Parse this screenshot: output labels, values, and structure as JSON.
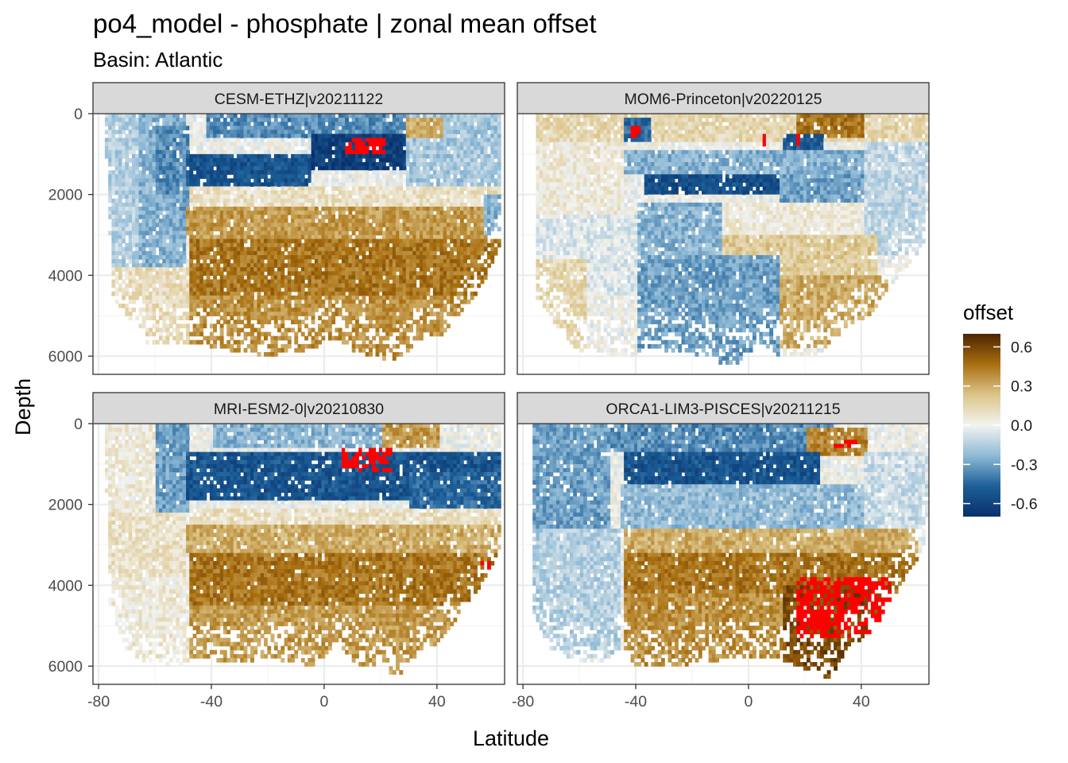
{
  "title": "po4_model - phosphate  | zonal mean offset",
  "subtitle": "Basin: Atlantic",
  "xlabel": "Latitude",
  "ylabel": "Depth",
  "legend": {
    "title": "offset",
    "ticks": [
      "0.6",
      "0.3",
      "0.0",
      "-0.3",
      "-0.6"
    ],
    "tick_values": [
      0.6,
      0.3,
      0.0,
      -0.3,
      -0.6
    ],
    "range": [
      -0.7,
      0.7
    ],
    "colors": [
      "#08306b",
      "#1d5f98",
      "#8fbad6",
      "#f3f3f0",
      "#dcc58a",
      "#a96f10",
      "#4d2400"
    ],
    "out_of_range_color": "#ff0000",
    "position": "right"
  },
  "chart_data": {
    "type": "heatmap",
    "facet_layout": "2x2",
    "xlim": [
      -82,
      64
    ],
    "ylim": [
      6450,
      0
    ],
    "x_ticks": [
      -80,
      -40,
      0,
      40
    ],
    "x_tick_labels": [
      "-80",
      "-40",
      "0",
      "40"
    ],
    "y_ticks": [
      0,
      2000,
      4000,
      6000
    ],
    "y_tick_labels": [
      "0",
      "2000",
      "4000",
      "6000"
    ],
    "grid": true,
    "panels": [
      {
        "strip": "CESM-ETHZ|v20211122",
        "bottom": [
          [
            -78,
            0
          ],
          [
            -75,
            4500
          ],
          [
            -70,
            4900
          ],
          [
            -63,
            5600
          ],
          [
            -55,
            5700
          ],
          [
            -45,
            5600
          ],
          [
            -40,
            5700
          ],
          [
            -35,
            5800
          ],
          [
            -25,
            5900
          ],
          [
            -20,
            6000
          ],
          [
            -10,
            5800
          ],
          [
            -5,
            5900
          ],
          [
            0,
            5600
          ],
          [
            5,
            5500
          ],
          [
            10,
            5800
          ],
          [
            15,
            5900
          ],
          [
            20,
            6000
          ],
          [
            25,
            6050
          ],
          [
            30,
            5800
          ],
          [
            35,
            5500
          ],
          [
            40,
            5500
          ],
          [
            45,
            5200
          ],
          [
            50,
            4800
          ],
          [
            55,
            4300
          ],
          [
            58,
            3900
          ],
          [
            62,
            3300
          ],
          [
            63,
            0
          ]
        ],
        "zones": [
          {
            "x0": -80,
            "x1": -66,
            "d0": 0,
            "d1": 5000,
            "v": -0.15
          },
          {
            "x0": -66,
            "x1": -50,
            "d0": 0,
            "d1": 3800,
            "v": -0.25
          },
          {
            "x0": -60,
            "x1": -48,
            "d0": 300,
            "d1": 2000,
            "v": -0.35
          },
          {
            "x0": -52,
            "x1": -42,
            "d0": 1000,
            "d1": 2800,
            "v": -0.3
          },
          {
            "x0": -50,
            "x1": -5,
            "d0": 1000,
            "d1": 1800,
            "v": -0.52
          },
          {
            "x0": -42,
            "x1": 30,
            "d0": 0,
            "d1": 600,
            "v": -0.35
          },
          {
            "x0": -5,
            "x1": 28,
            "d0": 500,
            "d1": 1400,
            "v": -0.62
          },
          {
            "x0": 28,
            "x1": 63,
            "d0": 0,
            "d1": 2000,
            "v": -0.18
          },
          {
            "x0": 28,
            "x1": 42,
            "d0": 100,
            "d1": 600,
            "v": 0.3
          },
          {
            "x0": -48,
            "x1": 63,
            "d0": 1800,
            "d1": 2300,
            "v": 0.1
          },
          {
            "x0": -50,
            "x1": 63,
            "d0": 2300,
            "d1": 3100,
            "v": 0.35
          },
          {
            "x0": -48,
            "x1": 62,
            "d0": 3100,
            "d1": 4500,
            "v": 0.45
          },
          {
            "x0": -48,
            "x1": 62,
            "d0": 4500,
            "d1": 6100,
            "v": 0.38
          },
          {
            "x0": -78,
            "x1": -48,
            "d0": 3800,
            "d1": 5800,
            "v": 0.12
          },
          {
            "x0": 56,
            "x1": 63,
            "d0": 2000,
            "d1": 3000,
            "v": -0.25
          }
        ],
        "hot": [
          {
            "x0": 7,
            "x1": 21,
            "d0": 550,
            "d1": 950
          }
        ]
      },
      {
        "strip": "MOM6-Princeton|v20220125",
        "bottom": [
          [
            -76,
            0
          ],
          [
            -75,
            4500
          ],
          [
            -70,
            5000
          ],
          [
            -65,
            5500
          ],
          [
            -60,
            5800
          ],
          [
            -50,
            5900
          ],
          [
            -40,
            6000
          ],
          [
            -35,
            5700
          ],
          [
            -30,
            5800
          ],
          [
            -20,
            5900
          ],
          [
            -10,
            6100
          ],
          [
            -5,
            6200
          ],
          [
            0,
            5900
          ],
          [
            5,
            5600
          ],
          [
            10,
            5900
          ],
          [
            20,
            6000
          ],
          [
            25,
            5900
          ],
          [
            30,
            5500
          ],
          [
            35,
            5300
          ],
          [
            40,
            5100
          ],
          [
            45,
            4800
          ],
          [
            50,
            4200
          ],
          [
            55,
            3800
          ],
          [
            60,
            3400
          ],
          [
            63,
            3000
          ],
          [
            64,
            0
          ]
        ],
        "zones": [
          {
            "x0": -80,
            "x1": 64,
            "d0": 0,
            "d1": 650,
            "v": 0.15
          },
          {
            "x0": 16,
            "x1": 40,
            "d0": 0,
            "d1": 550,
            "v": 0.45
          },
          {
            "x0": -45,
            "x1": -35,
            "d0": 100,
            "d1": 700,
            "v": -0.45
          },
          {
            "x0": 12,
            "x1": 26,
            "d0": 500,
            "d1": 1100,
            "v": -0.5
          },
          {
            "x0": -80,
            "x1": -45,
            "d0": 650,
            "d1": 2500,
            "v": 0.05
          },
          {
            "x0": -45,
            "x1": 40,
            "d0": 900,
            "d1": 1500,
            "v": -0.25
          },
          {
            "x0": -38,
            "x1": 10,
            "d0": 1500,
            "d1": 2000,
            "v": -0.55
          },
          {
            "x0": 10,
            "x1": 40,
            "d0": 1500,
            "d1": 2200,
            "v": -0.3
          },
          {
            "x0": 40,
            "x1": 64,
            "d0": 650,
            "d1": 3500,
            "v": -0.12
          },
          {
            "x0": -80,
            "x1": -40,
            "d0": 2500,
            "d1": 4500,
            "v": -0.05
          },
          {
            "x0": -80,
            "x1": -58,
            "d0": 3600,
            "d1": 5800,
            "v": 0.15
          },
          {
            "x0": -40,
            "x1": -10,
            "d0": 2200,
            "d1": 3500,
            "v": -0.25
          },
          {
            "x0": -10,
            "x1": 40,
            "d0": 2200,
            "d1": 3000,
            "v": 0.05
          },
          {
            "x0": -10,
            "x1": 45,
            "d0": 3000,
            "d1": 4000,
            "v": 0.2
          },
          {
            "x0": 10,
            "x1": 50,
            "d0": 4000,
            "d1": 5800,
            "v": 0.3
          },
          {
            "x0": -40,
            "x1": 10,
            "d0": 3500,
            "d1": 6200,
            "v": -0.3
          }
        ],
        "hot": [
          {
            "x0": -42,
            "x1": -39,
            "d0": 300,
            "d1": 600
          },
          {
            "x0": 16,
            "x1": 18,
            "d0": 500,
            "d1": 900
          },
          {
            "x0": 5,
            "x1": 6,
            "d0": 500,
            "d1": 800
          }
        ]
      },
      {
        "strip": "MRI-ESM2-0|v20210830",
        "bottom": [
          [
            -78,
            0
          ],
          [
            -76,
            4500
          ],
          [
            -70,
            5500
          ],
          [
            -65,
            5800
          ],
          [
            -60,
            5900
          ],
          [
            -55,
            6000
          ],
          [
            -50,
            5900
          ],
          [
            -45,
            5700
          ],
          [
            -40,
            5800
          ],
          [
            -30,
            5900
          ],
          [
            -20,
            5700
          ],
          [
            -15,
            5900
          ],
          [
            -10,
            5800
          ],
          [
            -5,
            6000
          ],
          [
            0,
            5700
          ],
          [
            5,
            5400
          ],
          [
            10,
            5800
          ],
          [
            15,
            6000
          ],
          [
            20,
            5900
          ],
          [
            25,
            6200
          ],
          [
            28,
            6300
          ],
          [
            30,
            5900
          ],
          [
            35,
            5600
          ],
          [
            40,
            5400
          ],
          [
            45,
            5000
          ],
          [
            50,
            4400
          ],
          [
            55,
            4000
          ],
          [
            58,
            3700
          ],
          [
            62,
            3200
          ],
          [
            63,
            0
          ]
        ],
        "zones": [
          {
            "x0": -80,
            "x1": -60,
            "d0": 0,
            "d1": 3500,
            "v": 0.05
          },
          {
            "x0": -60,
            "x1": -48,
            "d0": 0,
            "d1": 2200,
            "v": -0.3
          },
          {
            "x0": -50,
            "x1": 63,
            "d0": 700,
            "d1": 1900,
            "v": -0.52
          },
          {
            "x0": -40,
            "x1": 20,
            "d0": 0,
            "d1": 600,
            "v": -0.25
          },
          {
            "x0": 20,
            "x1": 40,
            "d0": 0,
            "d1": 600,
            "v": 0.35
          },
          {
            "x0": 30,
            "x1": 63,
            "d0": 1200,
            "d1": 2600,
            "v": -0.45
          },
          {
            "x0": -80,
            "x1": -50,
            "d0": 2200,
            "d1": 3800,
            "v": 0.1
          },
          {
            "x0": -48,
            "x1": 63,
            "d0": 2100,
            "d1": 2500,
            "v": 0.1
          },
          {
            "x0": -50,
            "x1": 62,
            "d0": 2500,
            "d1": 3200,
            "v": 0.3
          },
          {
            "x0": -48,
            "x1": 62,
            "d0": 3200,
            "d1": 4500,
            "v": 0.45
          },
          {
            "x0": -48,
            "x1": 60,
            "d0": 4500,
            "d1": 6300,
            "v": 0.35
          },
          {
            "x0": -78,
            "x1": -48,
            "d0": 3800,
            "d1": 5900,
            "v": 0.05
          }
        ],
        "hot": [
          {
            "x0": 6,
            "x1": 24,
            "d0": 550,
            "d1": 1150
          },
          {
            "x0": 55,
            "x1": 59,
            "d0": 3400,
            "d1": 3700
          }
        ]
      },
      {
        "strip": "ORCA1-LIM3-PISCES|v20211215",
        "bottom": [
          [
            -77,
            0
          ],
          [
            -76,
            4800
          ],
          [
            -70,
            5500
          ],
          [
            -60,
            5900
          ],
          [
            -50,
            5800
          ],
          [
            -45,
            5500
          ],
          [
            -40,
            5900
          ],
          [
            -30,
            6000
          ],
          [
            -20,
            5900
          ],
          [
            -10,
            5800
          ],
          [
            0,
            5700
          ],
          [
            10,
            5800
          ],
          [
            20,
            6000
          ],
          [
            25,
            6100
          ],
          [
            28,
            6300
          ],
          [
            32,
            5900
          ],
          [
            35,
            5500
          ],
          [
            40,
            5300
          ],
          [
            45,
            5000
          ],
          [
            50,
            4400
          ],
          [
            55,
            3800
          ],
          [
            60,
            3300
          ],
          [
            63,
            2800
          ],
          [
            64,
            0
          ]
        ],
        "zones": [
          {
            "x0": -80,
            "x1": -50,
            "d0": 0,
            "d1": 2600,
            "v": -0.3
          },
          {
            "x0": -50,
            "x1": 30,
            "d0": 0,
            "d1": 700,
            "v": -0.35
          },
          {
            "x0": 20,
            "x1": 42,
            "d0": 100,
            "d1": 750,
            "v": 0.4
          },
          {
            "x0": -45,
            "x1": 25,
            "d0": 700,
            "d1": 1500,
            "v": -0.52
          },
          {
            "x0": -80,
            "x1": -46,
            "d0": 2600,
            "d1": 5800,
            "v": -0.15
          },
          {
            "x0": -46,
            "x1": 40,
            "d0": 1500,
            "d1": 2600,
            "v": -0.22
          },
          {
            "x0": 40,
            "x1": 64,
            "d0": 700,
            "d1": 2600,
            "v": -0.1
          },
          {
            "x0": -45,
            "x1": 60,
            "d0": 2600,
            "d1": 3200,
            "v": 0.3
          },
          {
            "x0": -45,
            "x1": 60,
            "d0": 3200,
            "d1": 4200,
            "v": 0.45
          },
          {
            "x0": -45,
            "x1": 12,
            "d0": 4200,
            "d1": 6100,
            "v": 0.38
          },
          {
            "x0": 12,
            "x1": 50,
            "d0": 4000,
            "d1": 6300,
            "v": 0.58
          }
        ],
        "hot": [
          {
            "x0": 17,
            "x1": 50,
            "d0": 3800,
            "d1": 5300
          },
          {
            "x0": 30,
            "x1": 38,
            "d0": 400,
            "d1": 600
          }
        ]
      }
    ]
  }
}
